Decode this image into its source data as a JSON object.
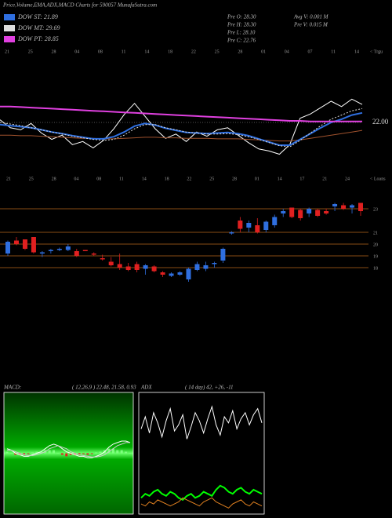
{
  "title": "Price,Volume,EMA,ADX,MACD Charts for 590057 MunafaSutra.com",
  "info": [
    "Pre O: 28.30",
    "Pre H: 28.30",
    "Pre L: 28.10",
    "Pre C: 22.76",
    "Avg V: 0.001 M",
    "Pre V: 0.015 M"
  ],
  "chart_data": [
    {
      "type": "line",
      "xlabels": [
        "21",
        "25",
        "28",
        "04",
        "08",
        "11",
        "14",
        "18",
        "22",
        "25",
        "28",
        "01",
        "04",
        "07",
        "11",
        "14"
      ],
      "axis_note": "< Trgu",
      "ylim": [
        14,
        34
      ],
      "yticks": [
        {
          "value": 22,
          "label": "22.00"
        }
      ],
      "series": [
        {
          "color": "#ffffff",
          "values": [
            22.5,
            21.0,
            20.6,
            21.8,
            20.0,
            18.8,
            19.6,
            17.8,
            18.4,
            17.2,
            18.6,
            20.8,
            23.5,
            25.6,
            23.2,
            20.8,
            19.0,
            19.8,
            18.4,
            20.2,
            19.4,
            20.6,
            21.0,
            19.6,
            18.2,
            17.0,
            16.6,
            16.0,
            17.8,
            22.8,
            23.6,
            24.8,
            26.0,
            25.0,
            26.4,
            25.4
          ]
        },
        {
          "color": "#a0522d",
          "values": [
            19.6,
            19.6,
            19.5,
            19.5,
            19.4,
            19.3,
            19.2,
            19.1,
            19.0,
            19.0,
            18.9,
            18.9,
            19.0,
            19.1,
            19.2,
            19.2,
            19.1,
            19.1,
            19.0,
            19.0,
            19.0,
            18.9,
            18.9,
            18.9,
            18.8,
            18.7,
            18.6,
            18.5,
            18.5,
            18.7,
            19.0,
            19.3,
            19.6,
            19.9,
            20.2,
            20.5
          ]
        },
        {
          "name": "DOW ST: 21.89",
          "color": "#2f6fe0",
          "values": [
            21.6,
            21.4,
            21.2,
            21.0,
            20.6,
            20.2,
            19.9,
            19.5,
            19.2,
            18.9,
            18.9,
            19.3,
            20.2,
            21.3,
            21.8,
            21.5,
            20.9,
            20.5,
            20.1,
            20.0,
            19.9,
            20.0,
            20.1,
            19.9,
            19.5,
            18.9,
            18.3,
            17.7,
            17.7,
            18.8,
            19.9,
            21.0,
            22.0,
            22.6,
            23.4,
            23.8
          ]
        },
        {
          "name": "DOW MT: 29.69",
          "color": "#dddddd",
          "dash": true,
          "values": [
            22.0,
            21.7,
            21.4,
            21.0,
            20.6,
            20.2,
            19.8,
            19.4,
            19.1,
            18.8,
            18.6,
            18.8,
            19.6,
            20.8,
            21.6,
            21.6,
            21.0,
            20.6,
            20.2,
            20.0,
            19.8,
            19.8,
            19.9,
            19.7,
            19.3,
            18.8,
            18.2,
            17.6,
            17.4,
            18.6,
            20.0,
            21.4,
            22.6,
            23.4,
            24.2,
            24.6
          ]
        },
        {
          "name": "DOW PT: 28.85",
          "color": "#e040e0",
          "values": [
            25.0,
            25.0,
            24.9,
            24.8,
            24.7,
            24.6,
            24.5,
            24.4,
            24.3,
            24.2,
            24.1,
            24.0,
            23.9,
            23.8,
            23.7,
            23.6,
            23.5,
            23.4,
            23.3,
            23.2,
            23.1,
            23.0,
            22.9,
            22.8,
            22.7,
            22.6,
            22.5,
            22.4,
            22.3,
            22.3,
            22.2,
            22.2,
            22.2,
            22.2,
            22.2,
            22.2
          ]
        }
      ]
    },
    {
      "type": "candlestick",
      "xlabels": [
        "21",
        "25",
        "28",
        "04",
        "08",
        "11",
        "14",
        "18",
        "22",
        "25",
        "28",
        "01",
        "14",
        "17",
        "21",
        "24"
      ],
      "axis_note": "< Loans",
      "ylim": [
        16.4,
        24.4
      ],
      "yticks": [
        23,
        21,
        20,
        19,
        18
      ],
      "grid": true,
      "grid_color": "#b5651d",
      "up_color": "#2f6fe0",
      "down_color": "#e02020",
      "open": [
        19.2,
        20.3,
        20.4,
        20.6,
        19.2,
        19.4,
        19.5,
        19.5,
        19.4,
        19.5,
        19.2,
        18.8,
        18.5,
        18.3,
        18.1,
        18.3,
        17.9,
        18.1,
        17.6,
        17.3,
        17.4,
        17.0,
        17.8,
        17.9,
        18.3,
        18.6,
        20.9,
        22.0,
        21.4,
        21.6,
        21.2,
        21.6,
        22.6,
        23.1,
        22.9,
        22.6,
        22.9,
        22.8,
        23.2,
        23.3,
        23.1,
        23.5
      ],
      "high": [
        20.3,
        20.6,
        20.4,
        20.6,
        19.4,
        19.6,
        19.7,
        20.0,
        19.6,
        19.5,
        19.3,
        19.1,
        18.9,
        19.2,
        18.4,
        18.5,
        18.3,
        18.2,
        17.7,
        17.6,
        17.7,
        18.0,
        18.5,
        18.5,
        18.5,
        19.7,
        21.1,
        22.3,
        22.0,
        22.2,
        22.0,
        22.5,
        23.0,
        23.1,
        23.0,
        23.1,
        23.0,
        23.0,
        23.5,
        23.5,
        23.4,
        23.5
      ],
      "low": [
        19.0,
        19.9,
        19.5,
        19.2,
        18.9,
        19.2,
        19.4,
        19.4,
        18.9,
        19.4,
        19.0,
        18.6,
        18.1,
        17.8,
        17.7,
        17.6,
        17.4,
        17.6,
        17.2,
        17.2,
        17.3,
        16.8,
        17.7,
        17.7,
        18.0,
        18.4,
        20.8,
        21.0,
        21.0,
        20.9,
        21.0,
        21.4,
        22.3,
        22.2,
        22.0,
        22.3,
        22.3,
        22.5,
        22.8,
        22.9,
        22.6,
        22.4
      ],
      "close": [
        20.2,
        20.0,
        19.6,
        19.3,
        19.3,
        19.5,
        19.6,
        19.8,
        19.0,
        19.4,
        19.1,
        18.7,
        18.2,
        18.0,
        17.8,
        17.8,
        18.2,
        17.7,
        17.4,
        17.5,
        17.6,
        17.9,
        18.3,
        18.2,
        18.4,
        19.6,
        21.0,
        21.3,
        21.8,
        21.0,
        21.9,
        22.3,
        22.8,
        22.3,
        22.2,
        23.0,
        22.4,
        22.6,
        23.4,
        23.0,
        23.3,
        22.8
      ]
    },
    {
      "type": "macd",
      "title": "MACD:",
      "subtitle": "( 12,26,9 ) 22.48, 21.58, 0.93",
      "ylim": [
        -4,
        4
      ],
      "series": [
        {
          "color": "#ffffff",
          "values": [
            0.3,
            0.2,
            0.0,
            -0.1,
            -0.2,
            -0.2,
            -0.1,
            0.0,
            0.1,
            0.3,
            0.5,
            0.6,
            0.5,
            0.3,
            0.1,
            0.0,
            -0.1,
            -0.2,
            -0.2,
            -0.3,
            -0.3,
            -0.2,
            -0.1,
            0.1,
            0.4,
            0.6,
            0.7,
            0.8,
            0.8,
            0.7
          ]
        },
        {
          "color": "#cccccc",
          "values": [
            0.2,
            0.2,
            0.1,
            0.0,
            -0.1,
            -0.15,
            -0.15,
            -0.1,
            0.0,
            0.1,
            0.3,
            0.4,
            0.5,
            0.4,
            0.3,
            0.1,
            0.0,
            -0.1,
            -0.15,
            -0.2,
            -0.25,
            -0.25,
            -0.2,
            -0.1,
            0.1,
            0.3,
            0.5,
            0.6,
            0.7,
            0.7
          ]
        }
      ],
      "histogram": {
        "up_color": "#7fff7f",
        "down_color": "#e02020",
        "values": [
          0.1,
          0.0,
          -0.1,
          -0.1,
          -0.1,
          -0.05,
          0.05,
          0.1,
          0.1,
          0.2,
          0.2,
          0.2,
          0.0,
          -0.1,
          -0.2,
          -0.1,
          -0.1,
          -0.1,
          -0.05,
          -0.1,
          -0.05,
          0.05,
          0.1,
          0.2,
          0.3,
          0.3,
          0.2,
          0.2,
          0.1,
          0.0
        ]
      }
    },
    {
      "type": "adx",
      "title": "ADX",
      "subtitle": "( 14 day) 42, +26, -11",
      "ylim": [
        0,
        60
      ],
      "series": [
        {
          "color": "#ffffff",
          "values": [
            42,
            48,
            40,
            50,
            45,
            38,
            46,
            52,
            41,
            44,
            49,
            37,
            43,
            50,
            46,
            40,
            47,
            53,
            44,
            39,
            48,
            45,
            51,
            42,
            47,
            50,
            44,
            49,
            52,
            45
          ]
        },
        {
          "color": "#00ff00",
          "values": [
            8,
            10,
            9,
            11,
            12,
            10,
            9,
            11,
            10,
            8,
            7,
            9,
            10,
            8,
            9,
            11,
            10,
            9,
            12,
            14,
            13,
            11,
            10,
            12,
            13,
            11,
            10,
            12,
            11,
            10
          ]
        },
        {
          "color": "#e08020",
          "values": [
            5,
            4,
            6,
            5,
            7,
            6,
            5,
            4,
            5,
            6,
            8,
            7,
            6,
            5,
            4,
            6,
            7,
            8,
            6,
            5,
            4,
            3,
            5,
            6,
            7,
            5,
            4,
            6,
            5,
            4
          ]
        }
      ]
    }
  ]
}
